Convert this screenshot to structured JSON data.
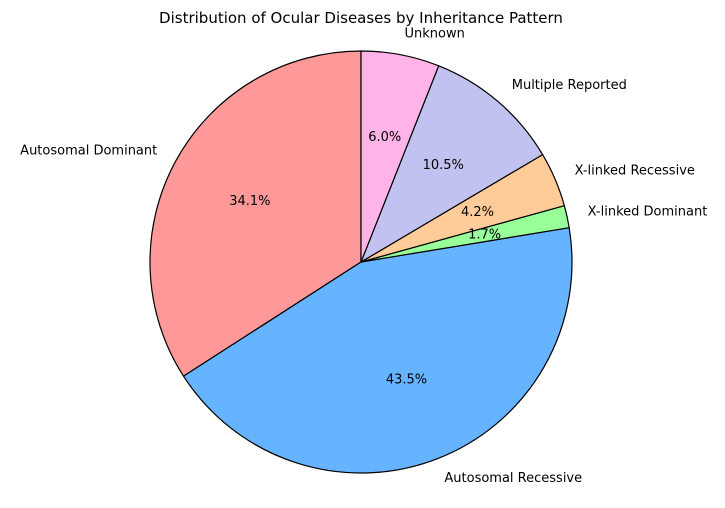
{
  "chart_data": {
    "type": "pie",
    "title": "Distribution of Ocular Diseases by Inheritance Pattern",
    "start_angle_deg": 90,
    "direction": "counterclockwise",
    "edge_color": "#000000",
    "slices": [
      {
        "label": "Autosomal Dominant",
        "value": 34.1,
        "pct_label": "34.1%",
        "color": "#ff9999"
      },
      {
        "label": "Autosomal Recessive",
        "value": 43.5,
        "pct_label": "43.5%",
        "color": "#66b3ff"
      },
      {
        "label": "X-linked Dominant",
        "value": 1.7,
        "pct_label": "1.7%",
        "color": "#99ff99"
      },
      {
        "label": "X-linked Recessive",
        "value": 4.2,
        "pct_label": "4.2%",
        "color": "#ffcc99"
      },
      {
        "label": "Multiple Reported",
        "value": 10.5,
        "pct_label": "10.5%",
        "color": "#c2c2f0"
      },
      {
        "label": "Unknown",
        "value": 6.0,
        "pct_label": "6.0%",
        "color": "#ffb3e6"
      }
    ]
  }
}
